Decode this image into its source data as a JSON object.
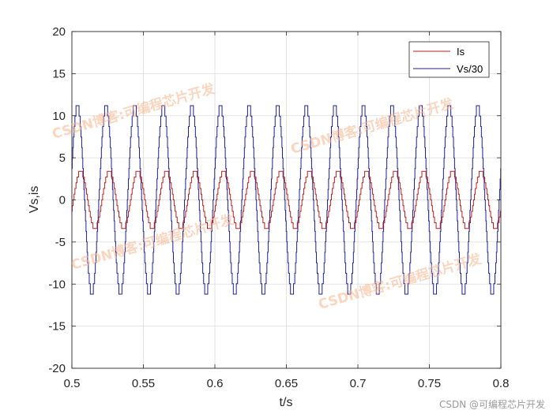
{
  "chart_data": {
    "type": "line",
    "xlabel": "t/s",
    "ylabel": "Vs,is",
    "xlim": [
      0.5,
      0.8
    ],
    "ylim": [
      -20,
      20
    ],
    "xticks": [
      0.5,
      0.55,
      0.6,
      0.65,
      0.7,
      0.75,
      0.8
    ],
    "xtick_labels": [
      "0.5",
      "0.55",
      "0.6",
      "0.65",
      "0.7",
      "0.75",
      "0.8"
    ],
    "yticks": [
      -20,
      -15,
      -10,
      -5,
      0,
      5,
      10,
      15,
      20
    ],
    "ytick_labels": [
      "-20",
      "-15",
      "-10",
      "-5",
      "0",
      "5",
      "10",
      "15",
      "20"
    ],
    "grid": true,
    "legend_position": "top-right",
    "frequency_hz": 50,
    "series": [
      {
        "name": "Is",
        "color": "#b22222",
        "amplitude": 3.4,
        "phase_deg": -20,
        "staircase_levels": 5,
        "shape": "stepped sinusoid"
      },
      {
        "name": "Vs/30",
        "color": "#1f1f8c",
        "amplitude": 11.2,
        "phase_deg": 20,
        "staircase_levels": 9,
        "shape": "stepped sinusoid"
      }
    ]
  },
  "watermarks": [
    "CSDN博客:可编程芯片开发",
    "CSDN博客:可编程芯片开发",
    "CSDN博客:可编程芯片开发",
    "CSDN博客:可编程芯片开发"
  ],
  "credit": "CSDN @可编程芯片开发"
}
